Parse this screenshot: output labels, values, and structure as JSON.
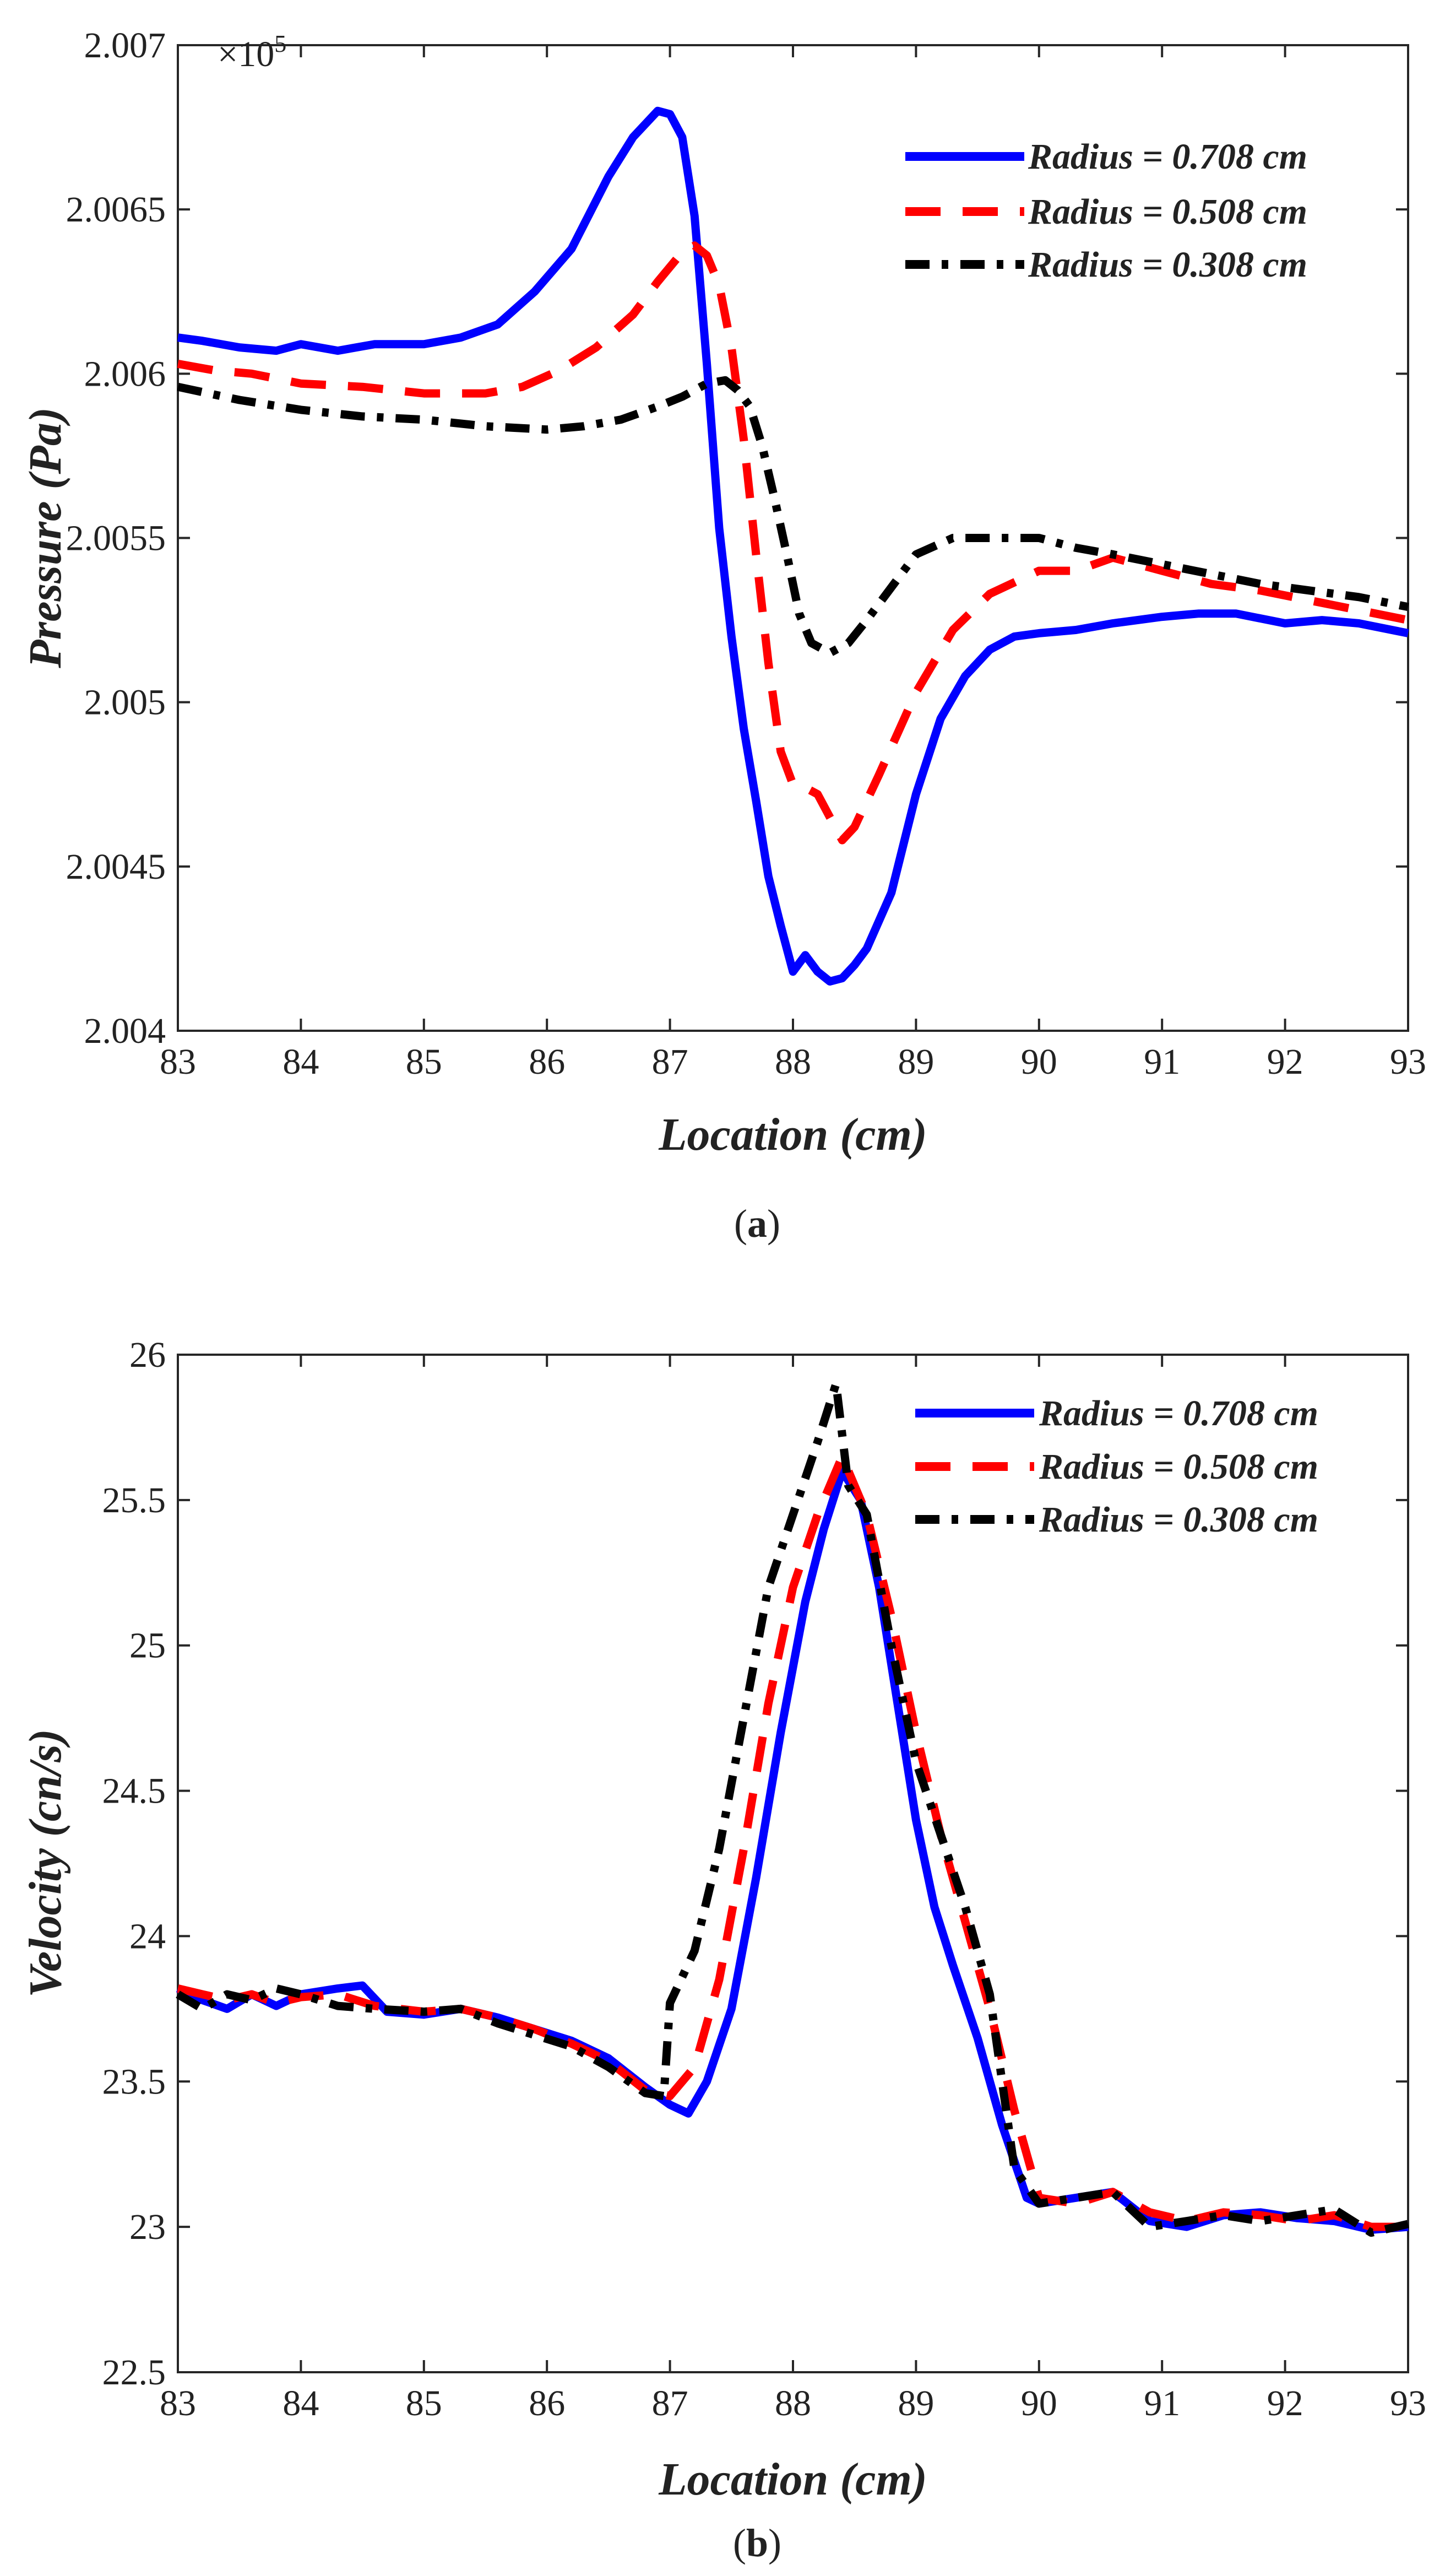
{
  "chart_data": [
    {
      "type": "line",
      "panel_caption": "a",
      "title": "",
      "xlabel": "Location (cm)",
      "ylabel": "Pressure (Pa)",
      "exponent_label": {
        "base": "×10",
        "power": "5"
      },
      "xlim": [
        83,
        93
      ],
      "ylim": [
        2.004,
        2.007
      ],
      "xticks": [
        83,
        84,
        85,
        86,
        87,
        88,
        89,
        90,
        91,
        92,
        93
      ],
      "xtick_labels": [
        "83",
        "84",
        "85",
        "86",
        "87",
        "88",
        "89",
        "90",
        "91",
        "92",
        "93"
      ],
      "yticks": [
        2.004,
        2.0045,
        2.005,
        2.0055,
        2.006,
        2.0065,
        2.007
      ],
      "ytick_labels": [
        "2.004",
        "2.0045",
        "2.005",
        "2.0055",
        "2.006",
        "2.0065",
        "2.007"
      ],
      "legend_position": "top-right",
      "series": [
        {
          "name": "Radius = 0.708 cm",
          "color": "#0000ff",
          "style": "solid",
          "x": [
            83.0,
            83.2,
            83.5,
            83.8,
            84.0,
            84.3,
            84.6,
            85.0,
            85.3,
            85.6,
            85.9,
            86.2,
            86.5,
            86.7,
            86.9,
            87.0,
            87.1,
            87.2,
            87.3,
            87.4,
            87.5,
            87.6,
            87.7,
            87.8,
            87.9,
            88.0,
            88.1,
            88.2,
            88.3,
            88.4,
            88.5,
            88.6,
            88.8,
            89.0,
            89.2,
            89.4,
            89.6,
            89.8,
            90.0,
            90.3,
            90.6,
            91.0,
            91.3,
            91.6,
            92.0,
            92.3,
            92.6,
            93.0
          ],
          "y": [
            2.00611,
            2.0061,
            2.00608,
            2.00607,
            2.00609,
            2.00607,
            2.00609,
            2.00609,
            2.00611,
            2.00615,
            2.00625,
            2.00638,
            2.0066,
            2.00672,
            2.0068,
            2.00679,
            2.00672,
            2.00648,
            2.00603,
            2.00553,
            2.0052,
            2.00492,
            2.0047,
            2.00447,
            2.00432,
            2.00418,
            2.00423,
            2.00418,
            2.00415,
            2.00416,
            2.0042,
            2.00425,
            2.00442,
            2.00472,
            2.00495,
            2.00508,
            2.00516,
            2.0052,
            2.00521,
            2.00522,
            2.00524,
            2.00526,
            2.00527,
            2.00527,
            2.00524,
            2.00525,
            2.00524,
            2.00521
          ]
        },
        {
          "name": "Radius = 0.508 cm",
          "color": "#ff0000",
          "style": "dashed",
          "x": [
            83.0,
            83.3,
            83.6,
            84.0,
            84.5,
            85.0,
            85.5,
            85.8,
            86.1,
            86.4,
            86.7,
            86.9,
            87.1,
            87.2,
            87.3,
            87.4,
            87.5,
            87.6,
            87.7,
            87.8,
            87.9,
            88.0,
            88.1,
            88.2,
            88.3,
            88.4,
            88.5,
            88.7,
            89.0,
            89.3,
            89.6,
            90.0,
            90.3,
            90.6,
            91.0,
            91.4,
            91.8,
            92.2,
            92.6,
            93.0
          ],
          "y": [
            2.00603,
            2.00601,
            2.006,
            2.00597,
            2.00596,
            2.00594,
            2.00594,
            2.00596,
            2.00601,
            2.00608,
            2.00618,
            2.00628,
            2.00637,
            2.00639,
            2.00636,
            2.00627,
            2.00608,
            2.0058,
            2.00545,
            2.00512,
            2.00485,
            2.00475,
            2.00474,
            2.00472,
            2.00465,
            2.00458,
            2.00462,
            2.00478,
            2.00503,
            2.00522,
            2.00533,
            2.0054,
            2.0054,
            2.00544,
            2.0054,
            2.00536,
            2.00534,
            2.00531,
            2.00528,
            2.00525
          ]
        },
        {
          "name": "Radius = 0.308 cm",
          "color": "#000000",
          "style": "dashdot",
          "x": [
            83.0,
            83.5,
            84.0,
            84.5,
            85.0,
            85.5,
            86.0,
            86.3,
            86.6,
            86.9,
            87.1,
            87.3,
            87.45,
            87.55,
            87.65,
            87.75,
            87.85,
            87.95,
            88.05,
            88.15,
            88.3,
            88.45,
            88.6,
            88.8,
            89.0,
            89.3,
            89.6,
            90.0,
            90.3,
            90.6,
            91.0,
            91.4,
            91.8,
            92.2,
            92.6,
            93.0
          ],
          "y": [
            2.00596,
            2.00592,
            2.00589,
            2.00587,
            2.00586,
            2.00584,
            2.00583,
            2.00584,
            2.00586,
            2.0059,
            2.00593,
            2.00597,
            2.00598,
            2.00595,
            2.0059,
            2.00578,
            2.00562,
            2.00545,
            2.00527,
            2.00518,
            2.00515,
            2.00518,
            2.00525,
            2.00535,
            2.00545,
            2.0055,
            2.0055,
            2.0055,
            2.00547,
            2.00545,
            2.00542,
            2.00539,
            2.00536,
            2.00534,
            2.00532,
            2.00529
          ]
        }
      ]
    },
    {
      "type": "line",
      "panel_caption": "b",
      "title": "",
      "xlabel": "Location (cm)",
      "ylabel": "Velocity (cn/s)",
      "xlim": [
        83,
        93
      ],
      "ylim": [
        22.5,
        26
      ],
      "xticks": [
        83,
        84,
        85,
        86,
        87,
        88,
        89,
        90,
        91,
        92,
        93
      ],
      "xtick_labels": [
        "83",
        "84",
        "85",
        "86",
        "87",
        "88",
        "89",
        "90",
        "91",
        "92",
        "93"
      ],
      "yticks": [
        22.5,
        23,
        23.5,
        24,
        24.5,
        25,
        25.5,
        26
      ],
      "ytick_labels": [
        "22.5",
        "23",
        "23.5",
        "24",
        "24.5",
        "25",
        "25.5",
        "26"
      ],
      "legend_position": "top-right",
      "series": [
        {
          "name": "Radius = 0.708 cm",
          "color": "#0000ff",
          "style": "solid",
          "x": [
            83.0,
            83.2,
            83.4,
            83.6,
            83.8,
            84.0,
            84.3,
            84.5,
            84.7,
            85.0,
            85.3,
            85.6,
            85.9,
            86.2,
            86.5,
            86.8,
            87.0,
            87.15,
            87.3,
            87.5,
            87.7,
            87.9,
            88.1,
            88.25,
            88.4,
            88.55,
            88.7,
            88.85,
            89.0,
            89.15,
            89.3,
            89.5,
            89.7,
            89.9,
            90.0,
            90.3,
            90.6,
            90.9,
            91.2,
            91.5,
            91.8,
            92.1,
            92.4,
            92.7,
            93.0
          ],
          "y": [
            23.82,
            23.78,
            23.75,
            23.8,
            23.76,
            23.8,
            23.82,
            23.83,
            23.74,
            23.73,
            23.75,
            23.72,
            23.68,
            23.64,
            23.58,
            23.48,
            23.42,
            23.39,
            23.5,
            23.75,
            24.2,
            24.7,
            25.15,
            25.4,
            25.6,
            25.5,
            25.2,
            24.8,
            24.4,
            24.1,
            23.9,
            23.65,
            23.35,
            23.1,
            23.08,
            23.1,
            23.12,
            23.02,
            23.0,
            23.04,
            23.05,
            23.03,
            23.02,
            22.99,
            23.0
          ]
        },
        {
          "name": "Radius = 0.508 cm",
          "color": "#ff0000",
          "style": "dashed",
          "x": [
            83.0,
            83.2,
            83.4,
            83.6,
            83.8,
            84.0,
            84.3,
            84.6,
            85.0,
            85.3,
            85.6,
            85.9,
            86.2,
            86.5,
            86.8,
            87.0,
            87.2,
            87.4,
            87.6,
            87.8,
            88.0,
            88.2,
            88.4,
            88.6,
            88.8,
            89.0,
            89.2,
            89.4,
            89.6,
            89.8,
            90.0,
            90.3,
            90.6,
            90.9,
            91.2,
            91.5,
            91.8,
            92.1,
            92.4,
            92.7,
            93.0
          ],
          "y": [
            23.82,
            23.8,
            23.78,
            23.8,
            23.77,
            23.79,
            23.8,
            23.76,
            23.74,
            23.75,
            23.72,
            23.68,
            23.63,
            23.57,
            23.47,
            23.45,
            23.55,
            23.85,
            24.3,
            24.8,
            25.2,
            25.45,
            25.65,
            25.45,
            25.1,
            24.7,
            24.35,
            24.05,
            23.75,
            23.4,
            23.1,
            23.08,
            23.12,
            23.05,
            23.02,
            23.05,
            23.04,
            23.02,
            23.04,
            23.0,
            23.0
          ]
        },
        {
          "name": "Radius = 0.308 cm",
          "color": "#000000",
          "style": "dashdot",
          "x": [
            83.0,
            83.2,
            83.4,
            83.6,
            83.8,
            84.0,
            84.3,
            84.6,
            85.0,
            85.3,
            85.6,
            85.9,
            86.2,
            86.5,
            86.8,
            86.95,
            87.0,
            87.2,
            87.4,
            87.6,
            87.8,
            88.0,
            88.2,
            88.35,
            88.45,
            88.6,
            88.8,
            89.0,
            89.2,
            89.4,
            89.6,
            89.8,
            90.0,
            90.3,
            90.6,
            90.9,
            91.2,
            91.5,
            91.8,
            92.1,
            92.4,
            92.7,
            93.0
          ],
          "y": [
            23.8,
            23.75,
            23.8,
            23.78,
            23.82,
            23.8,
            23.76,
            23.75,
            23.74,
            23.75,
            23.7,
            23.66,
            23.62,
            23.55,
            23.46,
            23.45,
            23.77,
            23.95,
            24.3,
            24.75,
            25.2,
            25.45,
            25.7,
            25.9,
            25.55,
            25.45,
            25.0,
            24.6,
            24.35,
            24.1,
            23.8,
            23.2,
            23.08,
            23.1,
            23.12,
            23.0,
            23.02,
            23.04,
            23.02,
            23.04,
            23.06,
            22.98,
            23.01
          ]
        }
      ]
    }
  ]
}
